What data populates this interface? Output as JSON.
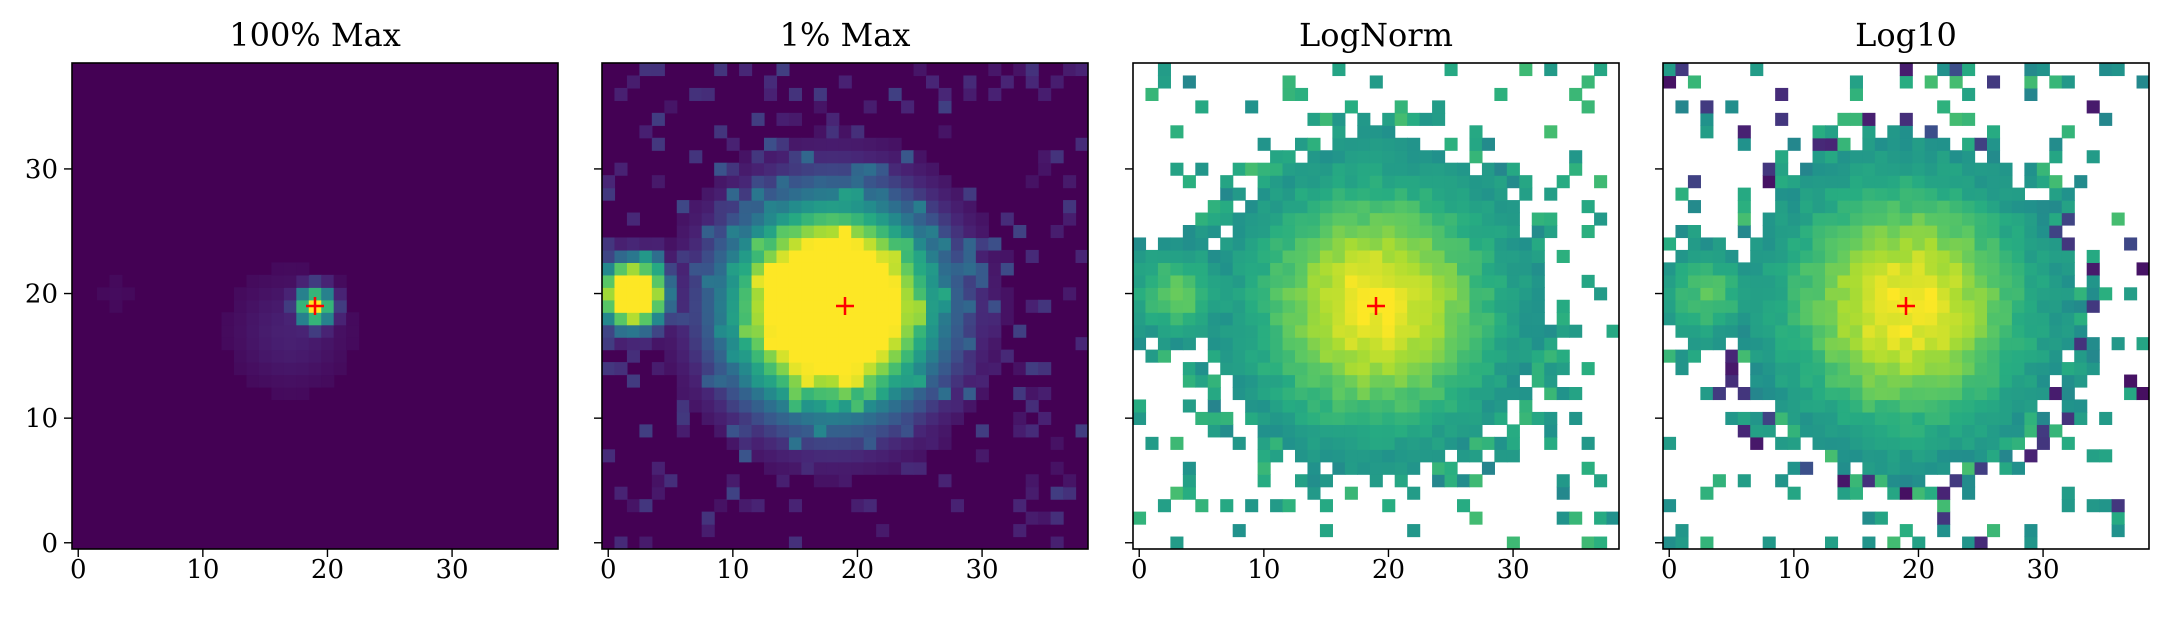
{
  "chart_data": [
    {
      "type": "heatmap",
      "title": "100% Max",
      "xlabel": "",
      "ylabel": "",
      "xlim": [
        -0.5,
        38.5
      ],
      "ylim": [
        -0.5,
        38.5
      ],
      "x_ticks": [
        "0",
        "10",
        "20",
        "30"
      ],
      "y_ticks": [
        "0",
        "10",
        "20",
        "30"
      ],
      "grid": false,
      "marker": {
        "x": 19,
        "y": 19,
        "symbol": "+",
        "color": "#ff0000"
      },
      "colormap": "viridis",
      "background_color": "#440154",
      "blobs": [
        {
          "x": 19,
          "y": 19,
          "intensity": 1.0,
          "sigma": 1.1
        },
        {
          "x": 17,
          "y": 17,
          "intensity": 0.12,
          "sigma": 3.2
        },
        {
          "x": 3,
          "y": 20,
          "intensity": 0.04,
          "sigma": 1.5
        }
      ]
    },
    {
      "type": "heatmap",
      "title": "1% Max",
      "xlabel": "",
      "ylabel": "",
      "xlim": [
        -0.5,
        38.5
      ],
      "ylim": [
        -0.5,
        38.5
      ],
      "x_ticks": [
        "0",
        "10",
        "20",
        "30"
      ],
      "y_ticks": [],
      "grid": false,
      "marker": {
        "x": 19,
        "y": 19,
        "symbol": "+",
        "color": "#ff0000"
      },
      "colormap": "viridis",
      "background_color": "#440154",
      "blobs": [
        {
          "x": 18,
          "y": 19,
          "intensity": 1.0,
          "sigma": 5.5
        },
        {
          "x": 2,
          "y": 20,
          "intensity": 1.0,
          "sigma": 1.8
        }
      ]
    },
    {
      "type": "heatmap",
      "title": "LogNorm",
      "xlabel": "",
      "ylabel": "",
      "xlim": [
        -0.5,
        38.5
      ],
      "ylim": [
        -0.5,
        38.5
      ],
      "x_ticks": [
        "0",
        "10",
        "20",
        "30"
      ],
      "y_ticks": [],
      "grid": false,
      "marker": {
        "x": 19,
        "y": 19,
        "symbol": "+",
        "color": "#ff0000"
      },
      "colormap": "viridis",
      "background_color": "#ffffff",
      "masked_color": "#ffffff",
      "blobs": [
        {
          "x": 19,
          "y": 19,
          "intensity": 1.0,
          "sigma": 6.5
        },
        {
          "x": 3,
          "y": 20,
          "intensity": 0.55,
          "sigma": 2.5
        }
      ]
    },
    {
      "type": "heatmap",
      "title": "Log10",
      "xlabel": "",
      "ylabel": "",
      "xlim": [
        -0.5,
        38.5
      ],
      "ylim": [
        -0.5,
        38.5
      ],
      "x_ticks": [
        "0",
        "10",
        "20",
        "30"
      ],
      "y_ticks": [],
      "grid": false,
      "marker": {
        "x": 19,
        "y": 19,
        "symbol": "+",
        "color": "#ff0000"
      },
      "colormap": "viridis",
      "background_color": "#ffffff",
      "masked_color": "#ffffff",
      "blobs": [
        {
          "x": 19,
          "y": 19,
          "intensity": 1.0,
          "sigma": 6.5
        },
        {
          "x": 3,
          "y": 20,
          "intensity": 0.5,
          "sigma": 2.5
        }
      ]
    }
  ]
}
